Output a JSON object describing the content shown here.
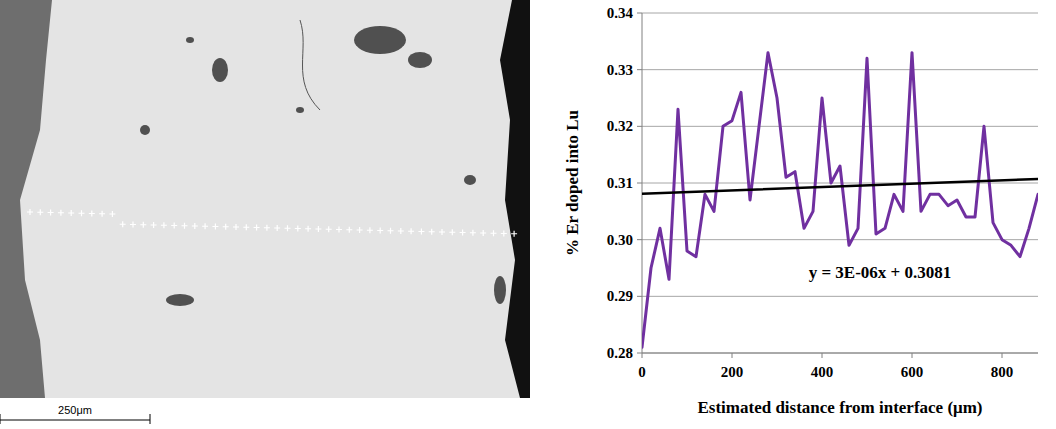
{
  "chart_data": {
    "type": "line",
    "x_label": "Estimated distance from interface (μm)",
    "y_label": "% Er doped into Lu",
    "annotation": "y = 3E-06x + 0.3081",
    "xlim": [
      0,
      880
    ],
    "xticks": [
      0,
      200,
      400,
      600,
      800
    ],
    "ylim": [
      0.28,
      0.34
    ],
    "yticks": [
      0.28,
      0.29,
      {
        "value": 0.3,
        "label": "0.30"
      },
      0.31,
      0.32,
      0.33,
      0.34
    ],
    "grid": true,
    "x": [
      0,
      20,
      40,
      60,
      80,
      100,
      120,
      140,
      160,
      180,
      200,
      220,
      240,
      260,
      280,
      300,
      320,
      340,
      360,
      380,
      400,
      420,
      440,
      460,
      480,
      500,
      520,
      540,
      560,
      580,
      600,
      620,
      640,
      660,
      680,
      700,
      720,
      740,
      760,
      780,
      800,
      820,
      840,
      860,
      880
    ],
    "series": [
      {
        "color": "#7030a0",
        "line_style": "solid",
        "values": [
          0.281,
          0.295,
          0.302,
          0.293,
          0.323,
          0.298,
          0.297,
          0.308,
          0.305,
          0.32,
          0.321,
          0.326,
          0.307,
          0.32,
          0.333,
          0.325,
          0.311,
          0.312,
          0.302,
          0.305,
          0.325,
          0.31,
          0.313,
          0.299,
          0.302,
          0.332,
          0.301,
          0.302,
          0.308,
          0.305,
          0.333,
          0.305,
          0.308,
          0.308,
          0.306,
          0.307,
          0.304,
          0.304,
          0.32,
          0.303,
          0.3,
          0.299,
          0.297,
          0.302,
          0.308
        ]
      },
      {
        "color": "#000000",
        "line_style": "solid",
        "x": [
          0,
          880
        ],
        "values": [
          0.3081,
          0.3107
        ]
      }
    ]
  },
  "micrograph": {
    "scale_bar": "250μm"
  }
}
